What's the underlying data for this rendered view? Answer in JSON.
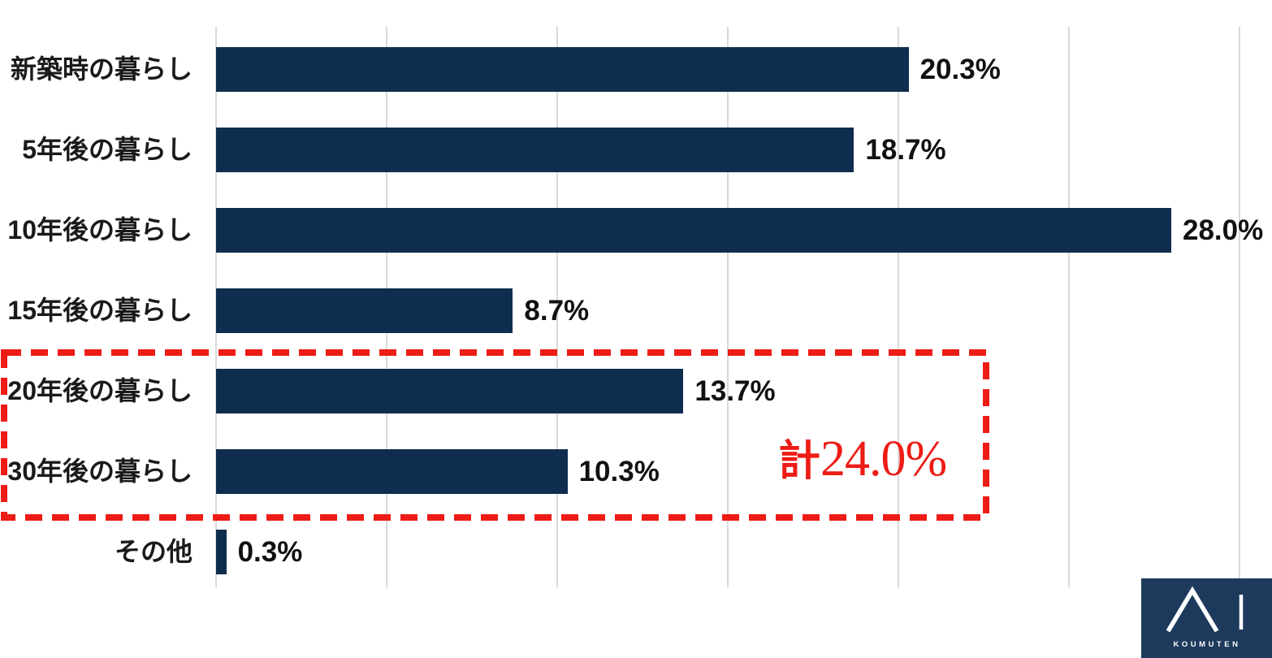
{
  "chart_data": {
    "type": "bar",
    "orientation": "horizontal",
    "title": "",
    "categories": [
      "新築時の暮らし",
      "5年後の暮らし",
      "10年後の暮らし",
      "15年後の暮らし",
      "20年後の暮らし",
      "30年後の暮らし",
      "その他"
    ],
    "values": [
      20.3,
      18.7,
      28.0,
      8.7,
      13.7,
      10.3,
      0.3
    ],
    "value_labels": [
      "20.3%",
      "18.7%",
      "28.0%",
      "8.7%",
      "13.7%",
      "10.3%",
      "0.3%"
    ],
    "xlim": [
      0,
      30
    ],
    "gridline_step_pct": 5,
    "grid": true,
    "legend": false,
    "highlight_group": {
      "applies_to": [
        "20年後の暮らし",
        "30年後の暮らし"
      ],
      "sum_pct": 24.0
    }
  },
  "annotation": {
    "prefix": "計",
    "value": "24.0%"
  },
  "logo": {
    "symbol": "AI-roof-mark",
    "text": "KOUMUTEN"
  },
  "colors": {
    "bar": "#0f2d4e",
    "grid": "#d9d9d9",
    "highlight": "#ed1c16",
    "label": "#1a1a1a",
    "logo_bg": "#1d3a5c",
    "logo_fg": "#ffffff"
  }
}
